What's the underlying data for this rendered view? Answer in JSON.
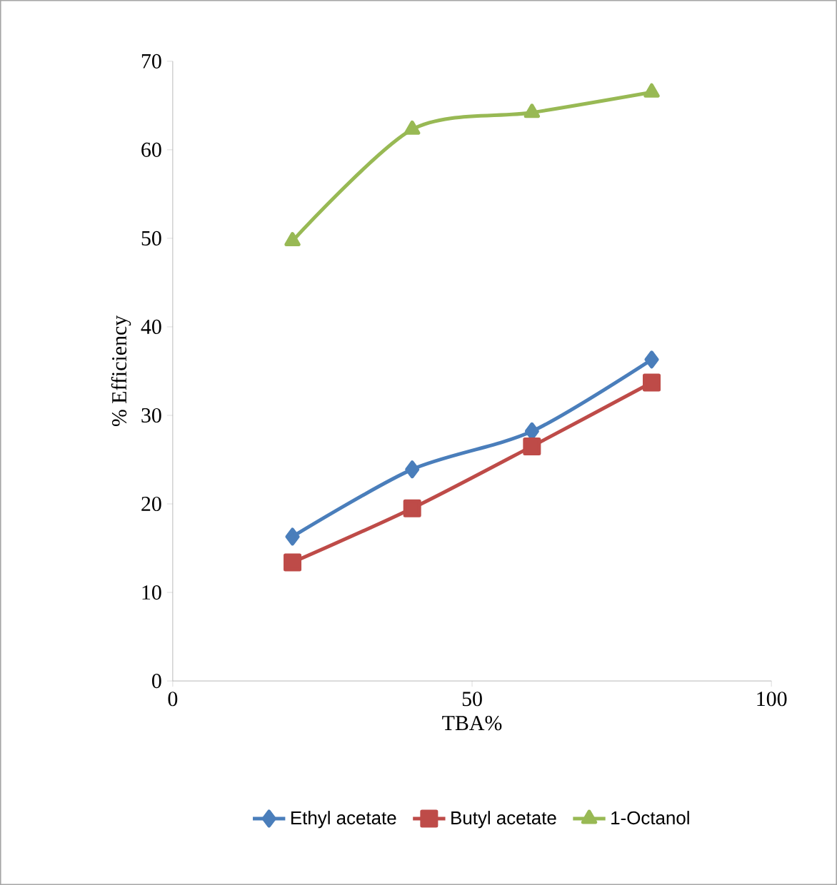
{
  "chart_data": {
    "type": "line",
    "xlabel": "TBA%",
    "ylabel": "% Efficiency",
    "x": [
      20,
      40,
      60,
      80
    ],
    "series": [
      {
        "name": "Ethyl acetate",
        "color": "#4a7ebb",
        "marker": "diamond",
        "values": [
          16.3,
          23.9,
          28.2,
          36.3
        ]
      },
      {
        "name": "Butyl acetate",
        "color": "#be4b48",
        "marker": "square",
        "values": [
          13.4,
          19.5,
          26.5,
          33.7
        ]
      },
      {
        "name": "1-Octanol",
        "color": "#98b954",
        "marker": "triangle",
        "values": [
          49.7,
          62.3,
          64.2,
          66.5
        ]
      }
    ],
    "xlim": [
      0,
      100
    ],
    "xticks": [
      0,
      50,
      100
    ],
    "ylim": [
      0,
      70
    ],
    "yticks": [
      0,
      10,
      20,
      30,
      40,
      50,
      60,
      70
    ],
    "legend": "bottom",
    "grid": false,
    "line_style": "solid"
  }
}
